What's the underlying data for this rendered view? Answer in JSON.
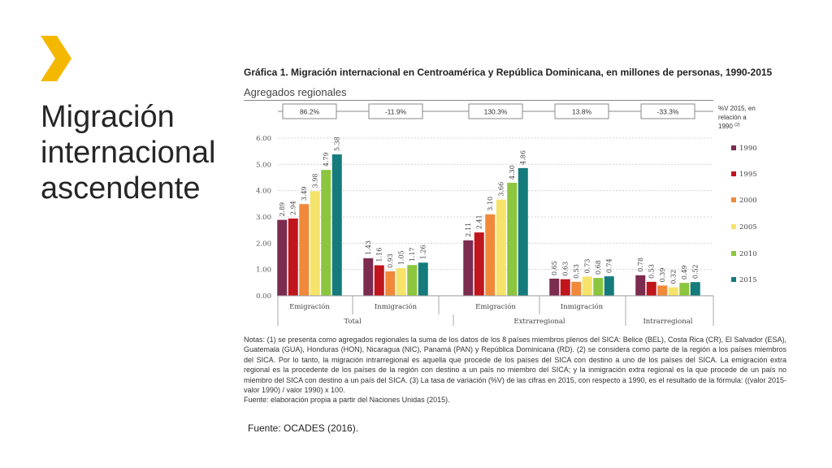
{
  "slide": {
    "title_lines": [
      "Migración",
      "internacional",
      "ascendente"
    ],
    "accent_color": "#F5B800",
    "icon": "chevron-right-icon",
    "source": "Fuente: OCADES (2016)."
  },
  "chart_data": {
    "type": "bar",
    "title": "Gráfica 1. Migración internacional en Centroamérica y República Dominicana, en millones de personas, 1990-2015",
    "subtitle": "Agregados regionales",
    "ylim": [
      0,
      6
    ],
    "yticks": [
      "0.00",
      "1.00",
      "2.00",
      "3.00",
      "4.00",
      "5.00",
      "6.00"
    ],
    "grid": true,
    "legend_position": "right",
    "variation_header": "%V 2015, en relación a 1990",
    "variation_header_note": "(2)",
    "groups": [
      {
        "label": "Emigración",
        "values": [
          2.89,
          2.94,
          3.49,
          3.98,
          4.79,
          5.38
        ]
      },
      {
        "label": "Inmigración",
        "values": [
          1.43,
          1.16,
          0.93,
          1.05,
          1.17,
          1.26
        ]
      },
      {
        "label": "Emigración",
        "values": [
          2.11,
          2.41,
          3.1,
          3.66,
          4.3,
          4.86
        ]
      },
      {
        "label": "Inmigración",
        "values": [
          0.65,
          0.63,
          0.53,
          0.73,
          0.68,
          0.74
        ]
      },
      {
        "label": "",
        "values": [
          0.78,
          0.53,
          0.39,
          0.32,
          0.49,
          0.52
        ]
      }
    ],
    "super_groups": [
      {
        "label": "Total",
        "span": [
          0,
          1
        ]
      },
      {
        "label": "Extrarregional",
        "span": [
          2,
          3
        ]
      },
      {
        "label": "Intrarregional",
        "span": [
          4,
          4
        ]
      }
    ],
    "variation": [
      "86.2%",
      "-11.9%",
      "130.3%",
      "13.8%",
      "-33.3%"
    ],
    "series": [
      {
        "name": "1990",
        "color": "#7B2C4F"
      },
      {
        "name": "1995",
        "color": "#C0151C"
      },
      {
        "name": "2000",
        "color": "#F08A3A"
      },
      {
        "name": "2005",
        "color": "#F6E36A"
      },
      {
        "name": "2010",
        "color": "#8CC63F"
      },
      {
        "name": "2015",
        "color": "#157B7C"
      }
    ]
  },
  "notes": [
    "Notas: (1) se presenta como agregados regionales la suma de los datos de los 8 países miembros plenos del SICA: Belice (BEL), Costa Rica (CR), El Salvador (ESA), Guatemala (GUA), Honduras (HON), Nicaragua (NIC), Panamá (PAN) y República Dominicana (RD). (2) se considera como parte de la región a los países miembros del SICA. Por lo tanto, la migración intrarregional es aquella que procede de los países del SICA con destino a uno de los países del SICA. La emigración extra regional es la procedente de los países de la región con destino a un país no miembro del SICA; y la inmigración extra regional es la que procede de un país no miembro del SICA con destino a un país del SICA. (3) La tasa de variación (%V) de las cifras en 2015, con respecto a 1990, es el resultado de la fórmula: ((valor 2015-valor 1990) / valor 1990) x 100.",
    "Fuente: elaboración propia a partir del Naciones Unidas (2015)."
  ]
}
